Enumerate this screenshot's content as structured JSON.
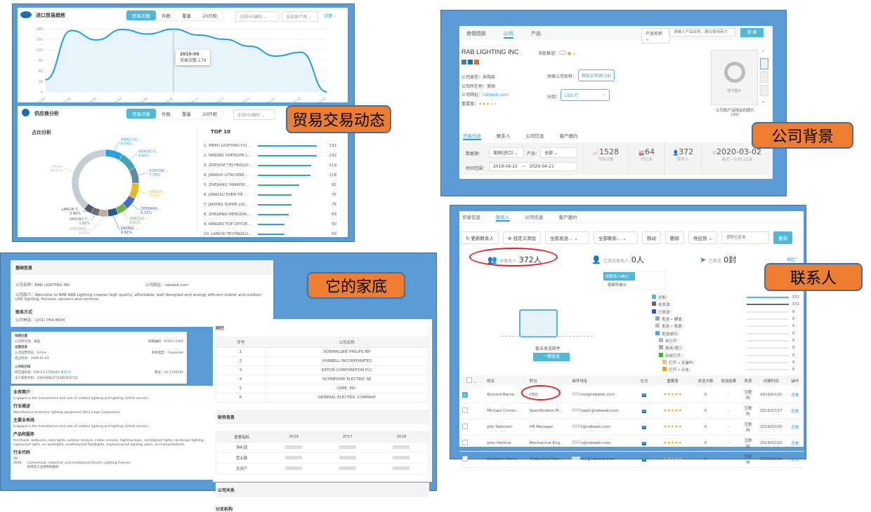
{
  "labels": {
    "trade": "贸易交易动态",
    "company": "公司背景",
    "family": "它的家底",
    "contacts": "联系人"
  },
  "trend": {
    "title": "进口贸易趋势",
    "tabs": [
      "贸易次数",
      "件数",
      "重量",
      "20尺柜"
    ],
    "hs": "全部HS编码",
    "origin": "全部原产地",
    "detail": "详情 ›",
    "tooltip_date": "2019-09",
    "tooltip_value": "贸易次数:179"
  },
  "chart_data": [
    {
      "type": "area",
      "categories": [
        "2019-04",
        "2019-05",
        "2019-06",
        "2019-07",
        "2019-08",
        "2019-09",
        "2019-10",
        "2019-11",
        "2019-12",
        "2020-01",
        "2020-02",
        "2020-03"
      ],
      "values": [
        35,
        175,
        148,
        178,
        165,
        179,
        162,
        150,
        130,
        102,
        113,
        0
      ],
      "yticks": [
        0,
        30,
        60,
        90,
        120,
        150,
        180
      ],
      "ylim": [
        0,
        180
      ],
      "grid": true,
      "color": "#1fa0dc"
    },
    {
      "type": "pie",
      "title": "占比分析",
      "slices": [
        {
          "label": "MEKO LIG...",
          "value": 8.64,
          "color": "#29a3dd"
        },
        {
          "label": "NINGBO S...",
          "value": 8.64,
          "color": "#3fa4b8"
        },
        {
          "label": "ZOPOISE ...",
          "value": 7.79,
          "color": "#5e8aa3"
        },
        {
          "label": "JIANGXI ...",
          "value": 7.72,
          "color": "#e9b820"
        },
        {
          "label": "ZHEJIANG...",
          "value": 6.02,
          "color": "#3e6ec7"
        },
        {
          "label": "JIANGSU ...",
          "value": 4.91,
          "color": "#73b04b"
        },
        {
          "label": "JIAXING ...",
          "value": 4.91,
          "color": "#255a8f"
        },
        {
          "label": "ZHEJIANG...",
          "value": 4.51,
          "color": "#c4a9a0"
        },
        {
          "label": "NINGBO T...",
          "value": 3.91,
          "color": "#6b6f73"
        },
        {
          "label": "LANCAI T...",
          "value": 3.86,
          "color": "#4d5b66"
        },
        {
          "label": "others",
          "value": 39.07,
          "color": "#c5ccd3"
        }
      ]
    },
    {
      "type": "bar",
      "title": "TOP 10",
      "categories": [
        "1. MEKO LIGHTING CO...",
        "2. NINGBO SHENGHE L...",
        "3. ZOPOISE TECHNOLO...",
        "4. JIANGXI LITKCONN ...",
        "5. ZHEJIANG YANKON ...",
        "6. JIANGSU EVER-TIE ...",
        "7. JIAXING SUPER LIG...",
        "8. ZHEJIANG HENGDIA...",
        "9. NINGBO TOP OPTOE...",
        "10. LANCAI TECHNOLO..."
      ],
      "values": [
        132,
        132,
        119,
        118,
        92,
        75,
        75,
        69,
        60,
        59
      ]
    }
  ],
  "supplier": {
    "title": "供应商分析",
    "tabs": [
      "贸易次数",
      "件数",
      "重量",
      "20尺柜"
    ],
    "hs": "全部HS编码"
  },
  "company": {
    "nav": [
      "商情图板",
      "公司",
      "产品"
    ],
    "search_type": "产品名称",
    "search_placeholder": "请输入产品名称，建议使用英文",
    "search_btn": "搜 索",
    "name": "RAB LIGHTING INC",
    "push": "消息推送：",
    "type": "公司类型：采购商",
    "location": "公司所在地：美国",
    "website_label": "公司网址：",
    "website": "rabweb.com",
    "importance": "重要度：",
    "stars": 3,
    "related_label": "关联公司名称：",
    "related": "相似公司名(34)",
    "group_label": "分组：",
    "group": "LED 灯",
    "no_image": "暂无图片",
    "image_caption": "公司和产品相关的图片",
    "image_count": "(20)",
    "tabs": [
      "贸易信息",
      "联系人",
      "公司信息",
      "客户邀约"
    ],
    "source_label": "数据源：",
    "source": "美国(进口)",
    "product_label": "产品：",
    "product": "全部",
    "time_label": "时间范围：",
    "from": "2019-04-22",
    "tilde": "~",
    "to": "2020-04-21",
    "stats": [
      {
        "value": "1528",
        "label": "贸易次数"
      },
      {
        "value": "64",
        "label": "供应商"
      },
      {
        "value": "372",
        "label": "联系人"
      },
      {
        "value": "2020-03-02",
        "label": "最近一次进口记录"
      }
    ]
  },
  "family": {
    "basic": "基础信息",
    "name": "公司名称：RAB LIGHTING INC",
    "site": "公司网址：rabweb.com",
    "intro": "公司简介：Welcome to RAB RAB Lighting creates high quality, affordable, well designed and energy efficient indoor and outdoor LED lighting, fixtures, sensors and controls.",
    "contact": "联系方式",
    "phone": "公司电话：(201) 784-8600",
    "geo": "地理位置",
    "country": "公司所在地：美国",
    "zip": "邮政编码：07647-2305",
    "ops": "运营信息",
    "status": "公司运营状态：Active",
    "org": "机构类型：Corporate",
    "founded": "成立时间：1946-01-01",
    "reg": "公司标识码",
    "ein": "所在国ID号：EIN 13-1726345",
    "more": "更多(2)",
    "tax": "税号：13-1726345",
    "lei": "法人机构代码：5493006LZ7Q4BY3EQ716",
    "biz": "业务简介",
    "biz_text": "Engaged in the manufacture and sale of outdoor lighting and lighting control sensors",
    "ind": "行业描述",
    "ind_text": "Manufacture of electric lighting equipment (Very Large Companies)",
    "main": "主要业务线",
    "main_text": "Engaged in the manufacture and sale of outdoor lighting and lighting control sensors",
    "prod": "产品和服务",
    "prod_text": "Hid floods, wallpacks, area lights, outdoor sensors, indoor sensors, high/low bays, vandalproof lights, landscape lighting, vaporproof lights, ou worklights, weatherproof floodlights, explosionproof lighting, poles, and lamps/ballasts",
    "code": "行业代码",
    "sic": "SIC：",
    "sic_code": "3646",
    "sic_text": "Commercial, Industrial, and Institutional Electric Lighting Fixtures",
    "sic_cn": "商用及工业用照明器材",
    "peers": "同行",
    "peer_cols": [
      "序号",
      "公司名称"
    ],
    "peer_rows": [
      [
        "1",
        "KONINKLIJKE PHILIPS NV"
      ],
      [
        "2",
        "HUBBELL INCORPORATED"
      ],
      [
        "3",
        "EATON CORPORATION PLC"
      ],
      [
        "4",
        "SCHNEIDER ELECTRIC SE"
      ],
      [
        "5",
        "CREE, INC."
      ],
      [
        "6",
        "GENERAL ELECTRIC COMPANY"
      ]
    ],
    "fin": "财务信息",
    "fin_cols": [
      "重要指标",
      "2016",
      "2017",
      "2018"
    ],
    "fin_rows": [
      "净利润",
      "营业额",
      "总资产"
    ],
    "rel": "公司关系",
    "branch": "分支机构"
  },
  "contacts": {
    "tabs": [
      "贸易信息",
      "联系人",
      "公司信息",
      "客户邀约"
    ],
    "toolbar": [
      "更新联系人",
      "自定义添加",
      "全部发送...",
      "全部联系...",
      "移动",
      "删除",
      "导出到"
    ],
    "search_placeholder": "按职位查询",
    "search_btn": "查询",
    "total_label": "总联系人",
    "total": "372人",
    "sent_contacts_label": "已发送联系人",
    "sent_contacts": "0人",
    "sent_label": "已发送",
    "sent": "0封",
    "collapse": "收起^",
    "stat_tabs": [
      "按联系人统计",
      "按邮件统计"
    ],
    "empty": "暂未发送邮件",
    "send_btn": "一键发送",
    "legend": [
      {
        "label": "总和：",
        "value": "372",
        "color": "#4fb8d6",
        "pct": 100
      },
      {
        "label": "未发送：",
        "value": "372",
        "color": "#666",
        "pct": 100
      },
      {
        "label": "已发送：",
        "value": "0",
        "color": "#3b50c8",
        "pct": 0
      },
      {
        "label": "发送 • 硬退：",
        "value": "0",
        "color": "#8da7c2",
        "pct": 0
      },
      {
        "label": "发送 • 软退：",
        "value": "0",
        "color": "#b7bfd0",
        "pct": 0
      },
      {
        "label": "发送成功：",
        "value": "0",
        "color": "#49a6ef",
        "pct": 0
      },
      {
        "label": "未打开：",
        "value": "0",
        "color": "#b0b6d6",
        "pct": 0
      },
      {
        "label": "投诉/退订：",
        "value": "0",
        "color": "#b0aca0",
        "pct": 0
      },
      {
        "label": "有效打开：",
        "value": "0",
        "color": "#35c10f",
        "pct": 0
      },
      {
        "label": "打开 • 无操作：",
        "value": "0",
        "color": "#e8c07e",
        "pct": 0
      },
      {
        "label": "打开 • 点击：",
        "value": "0",
        "color": "#f5a000",
        "pct": 0
      }
    ],
    "cols": [
      "姓名",
      "职位",
      "邮件地址",
      "社交",
      "重要度",
      "发送次数",
      "发送结果",
      "来源",
      "创建时间",
      "操作"
    ],
    "rows": [
      {
        "checked": true,
        "name": "Richard Barna",
        "title": "CEO",
        "email": "rna@rabweb.com",
        "sent": "0",
        "result": "-",
        "source": "互联网",
        "date": "2019/02/20",
        "op": "查看"
      },
      {
        "checked": false,
        "name": "Michael Crimm...",
        "title": "Specification M...",
        "email": "haelc@rabweb.com",
        "sent": "0",
        "result": "-",
        "source": "互联网",
        "date": "2019/12/27",
        "op": "查看"
      },
      {
        "checked": false,
        "name": "Jodi Takkinen",
        "title": "HR Manager",
        "email": "il@rabweb.com",
        "sent": "0",
        "result": "-",
        "source": "互联网",
        "date": "2019/02/20",
        "op": "查看"
      },
      {
        "checked": false,
        "name": "John Harkins",
        "title": "Mechanical Eng...",
        "email": "n@rabweb.com",
        "sent": "0",
        "result": "-",
        "source": "互联网",
        "date": "2019/02/20",
        "op": "查看"
      },
      {
        "checked": false,
        "name": "Elizabeth Henry",
        "title": "Tradeshow Man...",
        "email": "nry@rabweb.com",
        "sent": "0",
        "result": "-",
        "source": "互联网",
        "date": "2019/02/20",
        "op": "查看"
      }
    ]
  }
}
